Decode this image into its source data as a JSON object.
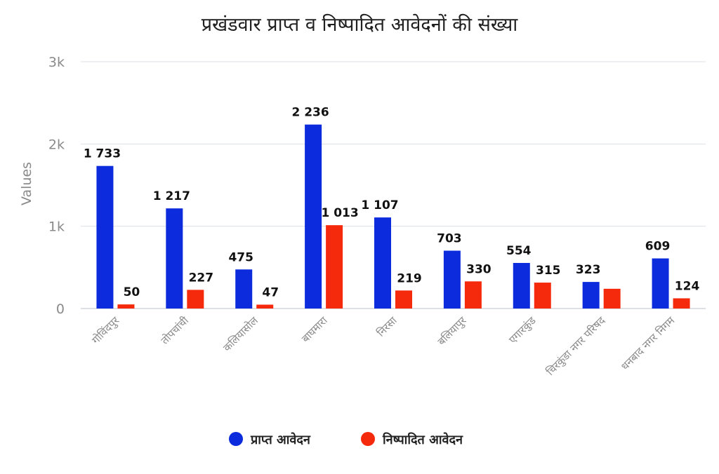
{
  "chart_data": {
    "type": "bar",
    "title": "प्रखंडवार प्राप्त व निष्पादित आवेदनों की संख्या",
    "ylabel": "Values",
    "xlabel": "",
    "ylim": [
      0,
      3000
    ],
    "yticks": [
      0,
      1000,
      2000,
      3000
    ],
    "ytick_labels": [
      "0",
      "1k",
      "2k",
      "3k"
    ],
    "grid": true,
    "legend_position": "bottom",
    "categories": [
      "गोविंदपुर",
      "तोपचांची",
      "कलियासोल",
      "बाघमारा",
      "निरसा",
      "बलियापुर",
      "एगारकुंड",
      "चिरकुंडा नगर परिषद",
      "धनबाद नगर निगम"
    ],
    "series": [
      {
        "name": "प्राप्त आवेदन",
        "color": "#0b2bdc",
        "values": [
          1733,
          1217,
          475,
          2236,
          1107,
          703,
          554,
          323,
          609
        ],
        "labels": [
          "1 733",
          "1 217",
          "475",
          "2 236",
          "1 107",
          "703",
          "554",
          "323",
          "609"
        ]
      },
      {
        "name": "निष्पादित आवेदन",
        "color": "#f52a0c",
        "values": [
          50,
          227,
          47,
          1013,
          219,
          330,
          315,
          240,
          124
        ],
        "labels": [
          "50",
          "227",
          "47",
          "1 013",
          "219",
          "330",
          "315",
          "",
          "124"
        ]
      }
    ]
  }
}
